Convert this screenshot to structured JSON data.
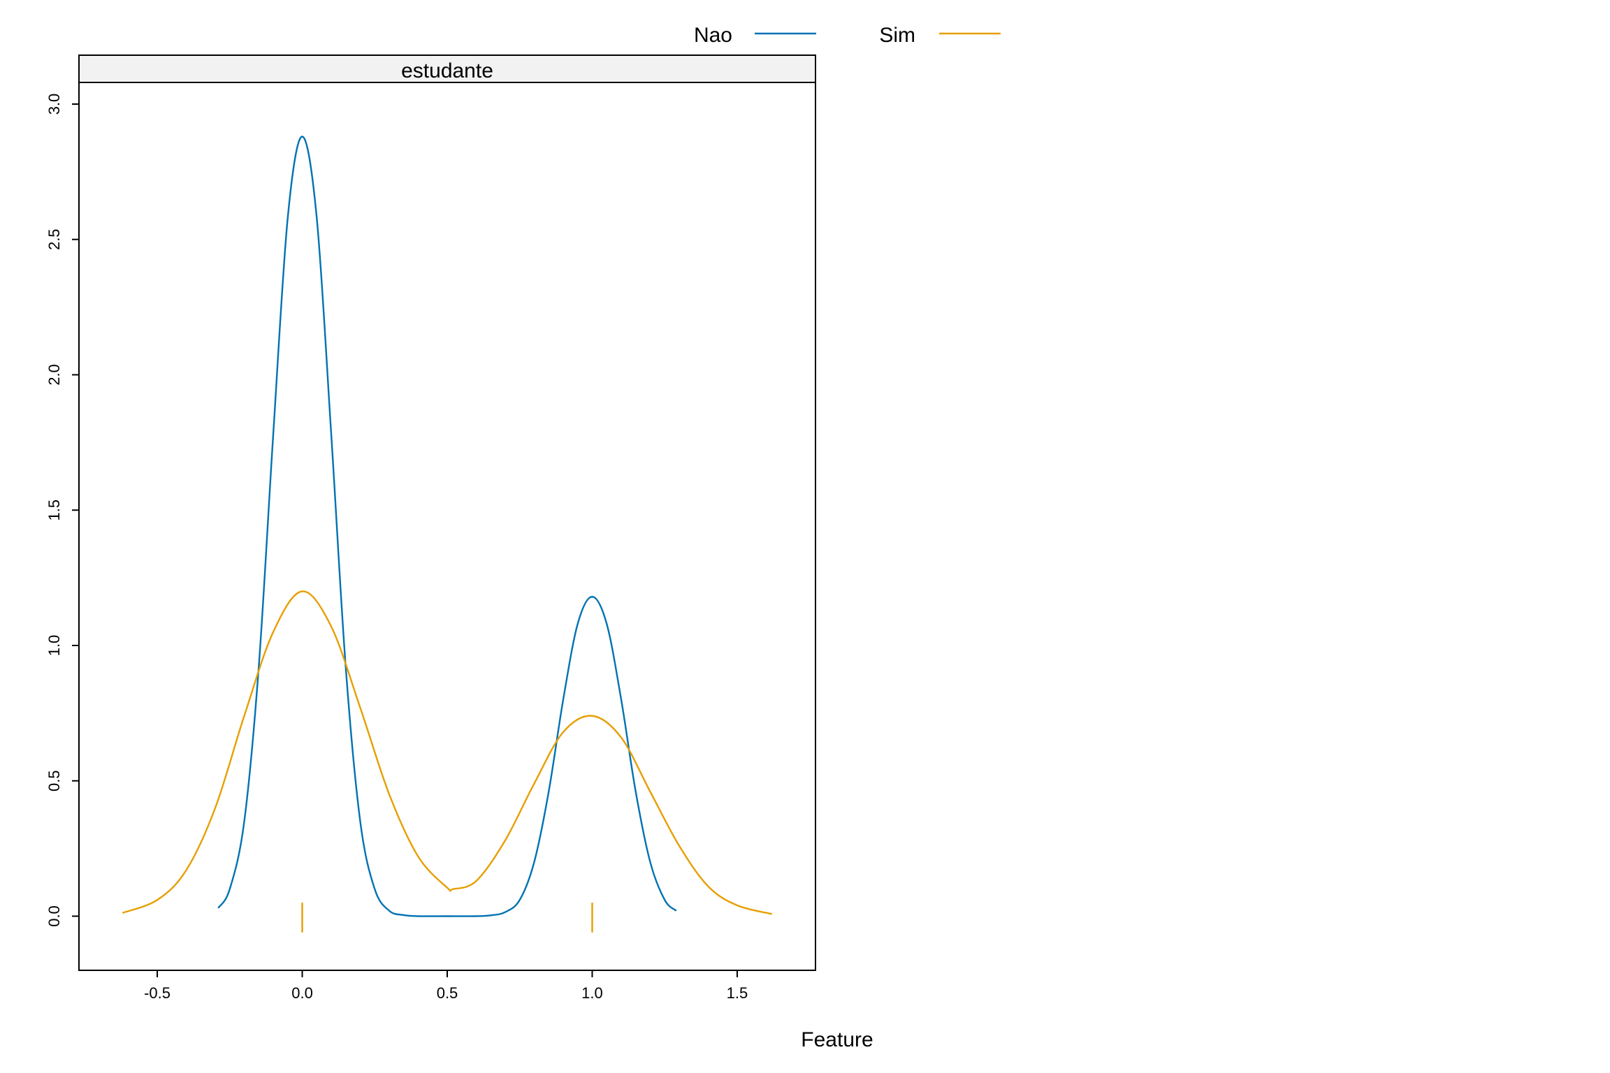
{
  "chart_data": {
    "type": "line",
    "panel_title": "estudante",
    "xlabel": "Feature",
    "ylabel": "",
    "xlim": [
      -0.77,
      1.77
    ],
    "ylim": [
      -0.2,
      3.08
    ],
    "xticks": [
      -0.5,
      0.0,
      0.5,
      1.0,
      1.5
    ],
    "xtick_labels": [
      "-0.5",
      "0.0",
      "0.5",
      "1.0",
      "1.5"
    ],
    "yticks": [
      0.0,
      0.5,
      1.0,
      1.5,
      2.0,
      2.5,
      3.0
    ],
    "ytick_labels": [
      "0.0",
      "0.5",
      "1.0",
      "1.5",
      "2.0",
      "2.5",
      "3.0"
    ],
    "legend_position": "top",
    "grid": false,
    "series": [
      {
        "name": "Nao",
        "color": "#0072B2",
        "x": [
          -0.29,
          -0.25,
          -0.2,
          -0.15,
          -0.1,
          -0.05,
          0.0,
          0.05,
          0.1,
          0.15,
          0.2,
          0.25,
          0.3,
          0.35,
          0.4,
          0.5,
          0.6,
          0.65,
          0.7,
          0.75,
          0.8,
          0.85,
          0.9,
          0.95,
          1.0,
          1.05,
          1.1,
          1.15,
          1.2,
          1.25,
          1.29
        ],
        "y": [
          0.03,
          0.1,
          0.35,
          0.92,
          1.78,
          2.58,
          2.88,
          2.58,
          1.78,
          0.92,
          0.35,
          0.1,
          0.02,
          0.004,
          0.0,
          0.0,
          0.0,
          0.003,
          0.015,
          0.06,
          0.2,
          0.46,
          0.8,
          1.08,
          1.18,
          1.08,
          0.8,
          0.46,
          0.2,
          0.06,
          0.02
        ]
      },
      {
        "name": "Sim",
        "color": "#E69F00",
        "x": [
          -0.62,
          -0.5,
          -0.4,
          -0.3,
          -0.2,
          -0.1,
          0.0,
          0.1,
          0.2,
          0.3,
          0.4,
          0.5,
          0.52,
          0.6,
          0.7,
          0.8,
          0.9,
          1.0,
          1.1,
          1.2,
          1.3,
          1.4,
          1.5,
          1.62
        ],
        "y": [
          0.012,
          0.06,
          0.17,
          0.4,
          0.74,
          1.05,
          1.2,
          1.07,
          0.77,
          0.45,
          0.22,
          0.105,
          0.1,
          0.13,
          0.28,
          0.49,
          0.68,
          0.74,
          0.66,
          0.46,
          0.26,
          0.11,
          0.04,
          0.008
        ]
      }
    ],
    "rug": {
      "color": "#E69F00",
      "x": [
        0.0,
        1.0
      ]
    }
  }
}
